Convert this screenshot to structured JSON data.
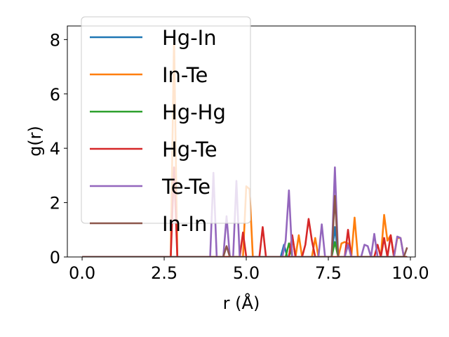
{
  "chart_data": {
    "type": "line",
    "title": "",
    "xlabel": "r (Å)",
    "ylabel": "g(r)",
    "xlim": [
      -0.45,
      10.15
    ],
    "ylim": [
      0,
      8.5
    ],
    "xticks": [
      0.0,
      2.5,
      5.0,
      7.5,
      10.0
    ],
    "xtick_labels": [
      "0.0",
      "2.5",
      "5.0",
      "7.5",
      "10.0"
    ],
    "yticks": [
      0,
      2,
      4,
      6,
      8
    ],
    "ytick_labels": [
      "0",
      "2",
      "4",
      "6",
      "8"
    ],
    "grid": false,
    "legend_position": "upper-left",
    "series": [
      {
        "name": "Hg-In",
        "color": "#1f77b4",
        "points": [
          [
            0,
            0
          ],
          [
            6.05,
            0
          ],
          [
            6.15,
            0.45
          ],
          [
            6.25,
            0
          ],
          [
            7.6,
            0
          ],
          [
            7.7,
            1.1
          ],
          [
            7.8,
            0
          ],
          [
            9.9,
            0
          ]
        ]
      },
      {
        "name": "In-Te",
        "color": "#ff7f0e",
        "points": [
          [
            0,
            0
          ],
          [
            2.7,
            0
          ],
          [
            2.8,
            8.1
          ],
          [
            2.9,
            0
          ],
          [
            4.9,
            0
          ],
          [
            5.0,
            2.6
          ],
          [
            5.1,
            2.5
          ],
          [
            5.2,
            0
          ],
          [
            6.3,
            0
          ],
          [
            6.4,
            0.8
          ],
          [
            6.5,
            0
          ],
          [
            6.6,
            0.8
          ],
          [
            6.7,
            0
          ],
          [
            7.0,
            0
          ],
          [
            7.1,
            0.7
          ],
          [
            7.2,
            0
          ],
          [
            7.8,
            0
          ],
          [
            7.9,
            0.5
          ],
          [
            8.0,
            0.55
          ],
          [
            8.1,
            0.5
          ],
          [
            8.2,
            0
          ],
          [
            8.3,
            1.45
          ],
          [
            8.4,
            0
          ],
          [
            9.1,
            0
          ],
          [
            9.2,
            1.55
          ],
          [
            9.3,
            0.6
          ],
          [
            9.4,
            0.8
          ],
          [
            9.5,
            0
          ],
          [
            9.6,
            0.7
          ],
          [
            9.7,
            0.7
          ],
          [
            9.8,
            0
          ]
        ]
      },
      {
        "name": "Hg-Hg",
        "color": "#2ca02c",
        "points": [
          [
            0,
            0
          ],
          [
            6.2,
            0
          ],
          [
            6.3,
            0.5
          ],
          [
            6.4,
            0
          ],
          [
            7.6,
            0
          ],
          [
            7.7,
            0.55
          ],
          [
            7.8,
            0
          ],
          [
            9.9,
            0
          ]
        ]
      },
      {
        "name": "Hg-Te",
        "color": "#d62728",
        "points": [
          [
            0,
            0
          ],
          [
            2.7,
            0
          ],
          [
            2.8,
            3.3
          ],
          [
            2.9,
            0
          ],
          [
            4.8,
            0
          ],
          [
            4.9,
            0.9
          ],
          [
            5.0,
            0
          ],
          [
            5.4,
            0
          ],
          [
            5.5,
            1.1
          ],
          [
            5.6,
            0
          ],
          [
            6.3,
            0
          ],
          [
            6.4,
            0.8
          ],
          [
            6.5,
            0
          ],
          [
            6.7,
            0
          ],
          [
            6.8,
            0.45
          ],
          [
            6.9,
            1.4
          ],
          [
            7.0,
            0.6
          ],
          [
            7.1,
            0
          ],
          [
            8.0,
            0
          ],
          [
            8.1,
            1.0
          ],
          [
            8.2,
            0
          ],
          [
            8.9,
            0
          ],
          [
            9.0,
            0.45
          ],
          [
            9.1,
            0
          ],
          [
            9.2,
            0.7
          ],
          [
            9.3,
            0
          ],
          [
            9.4,
            0.8
          ],
          [
            9.5,
            0
          ],
          [
            9.9,
            0
          ]
        ]
      },
      {
        "name": "Te-Te",
        "color": "#9467bd",
        "points": [
          [
            0,
            0
          ],
          [
            3.9,
            0
          ],
          [
            4.0,
            3.1
          ],
          [
            4.1,
            0
          ],
          [
            4.3,
            0
          ],
          [
            4.4,
            1.5
          ],
          [
            4.5,
            0
          ],
          [
            4.6,
            0
          ],
          [
            4.7,
            2.8
          ],
          [
            4.8,
            0
          ],
          [
            6.1,
            0
          ],
          [
            6.2,
            0.6
          ],
          [
            6.3,
            2.45
          ],
          [
            6.4,
            0
          ],
          [
            7.2,
            0
          ],
          [
            7.3,
            1.2
          ],
          [
            7.4,
            0
          ],
          [
            7.6,
            0
          ],
          [
            7.7,
            3.3
          ],
          [
            7.8,
            0
          ],
          [
            8.0,
            0
          ],
          [
            8.1,
            0.45
          ],
          [
            8.2,
            0
          ],
          [
            8.5,
            0
          ],
          [
            8.6,
            0.45
          ],
          [
            8.7,
            0.4
          ],
          [
            8.8,
            0
          ],
          [
            8.9,
            0.85
          ],
          [
            9.0,
            0
          ],
          [
            9.5,
            0
          ],
          [
            9.6,
            0.75
          ],
          [
            9.7,
            0.7
          ],
          [
            9.8,
            0
          ]
        ]
      },
      {
        "name": "In-In",
        "color": "#8c564b",
        "points": [
          [
            0,
            0
          ],
          [
            4.3,
            0
          ],
          [
            4.4,
            0.4
          ],
          [
            4.5,
            0
          ],
          [
            7.6,
            0
          ],
          [
            7.7,
            2.25
          ],
          [
            7.8,
            0
          ],
          [
            9.8,
            0
          ],
          [
            9.9,
            0.35
          ]
        ]
      }
    ]
  }
}
